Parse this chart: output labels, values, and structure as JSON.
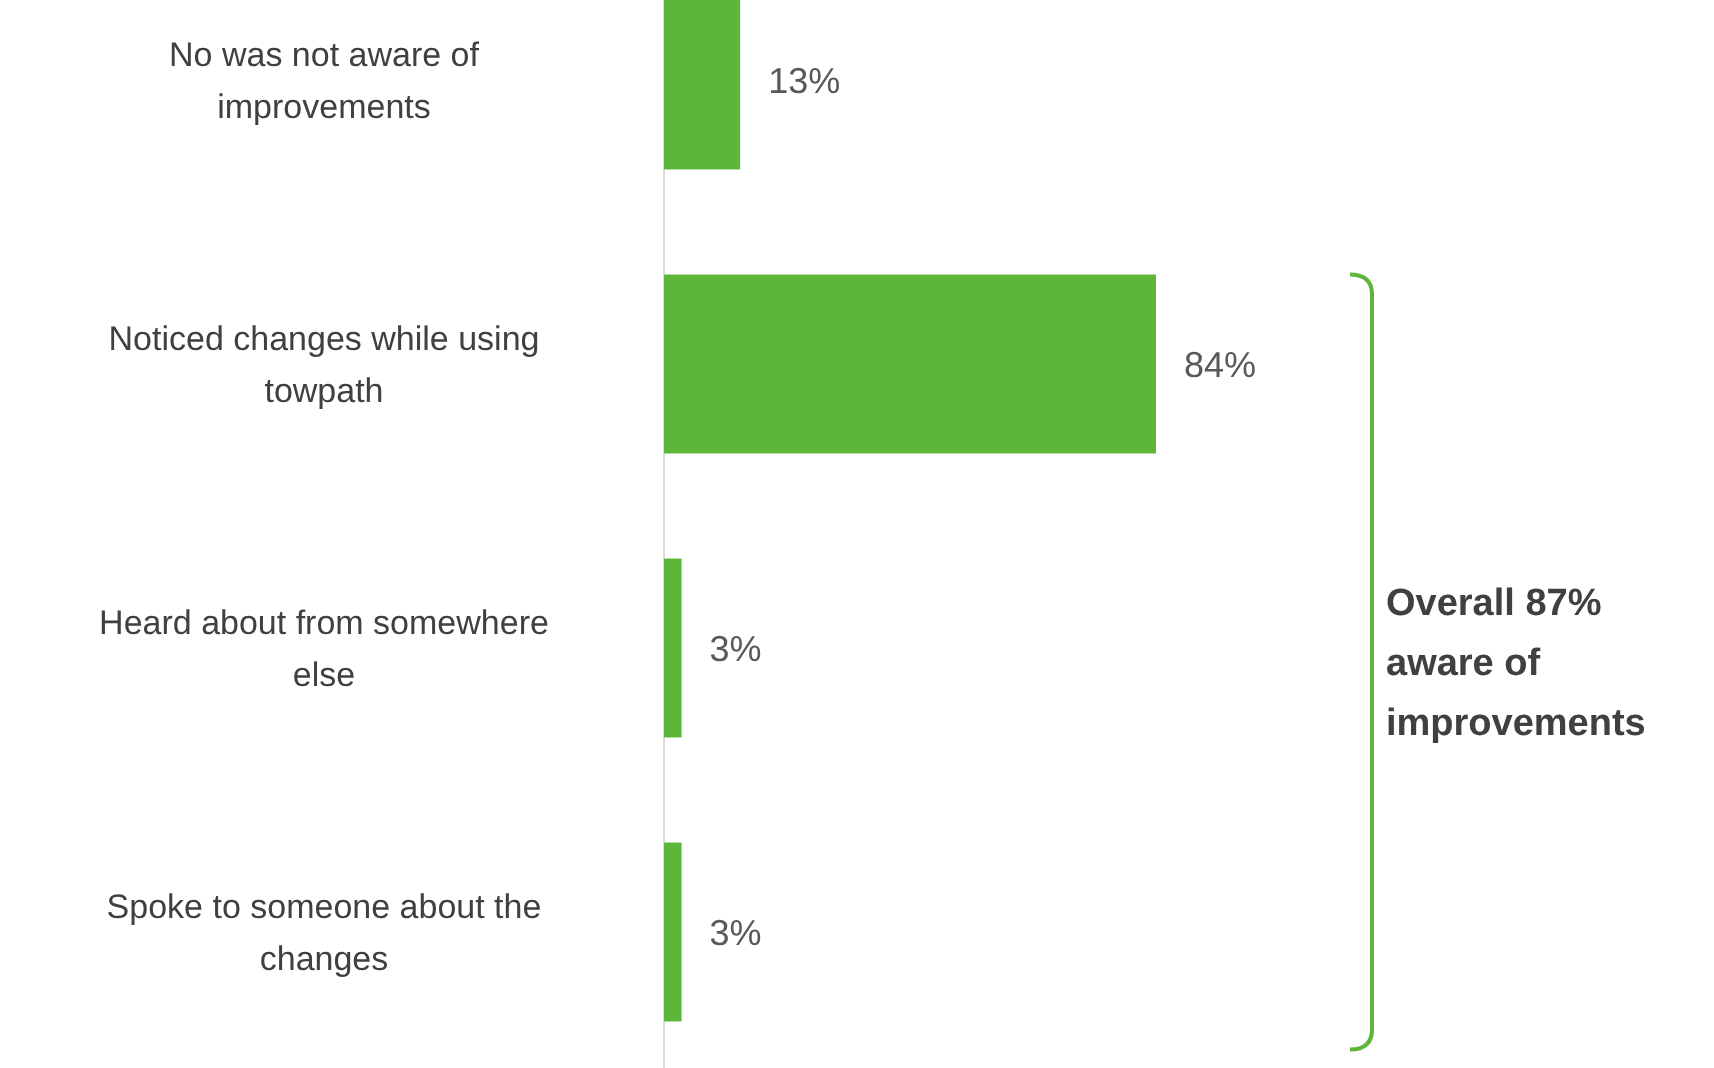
{
  "chart_data": {
    "type": "bar",
    "orientation": "horizontal",
    "categories": [
      "No was not aware of improvements",
      "Noticed changes while using towpath",
      "Heard about from somewhere else",
      "Spoke to someone about the changes"
    ],
    "values": [
      13,
      84,
      3,
      3
    ],
    "color": "#5db53a",
    "data_labels": true,
    "value_labels": [
      "13%",
      "84%",
      "3%",
      "3%"
    ],
    "annotations": [
      "Overall 87% aware of improvements"
    ]
  }
}
